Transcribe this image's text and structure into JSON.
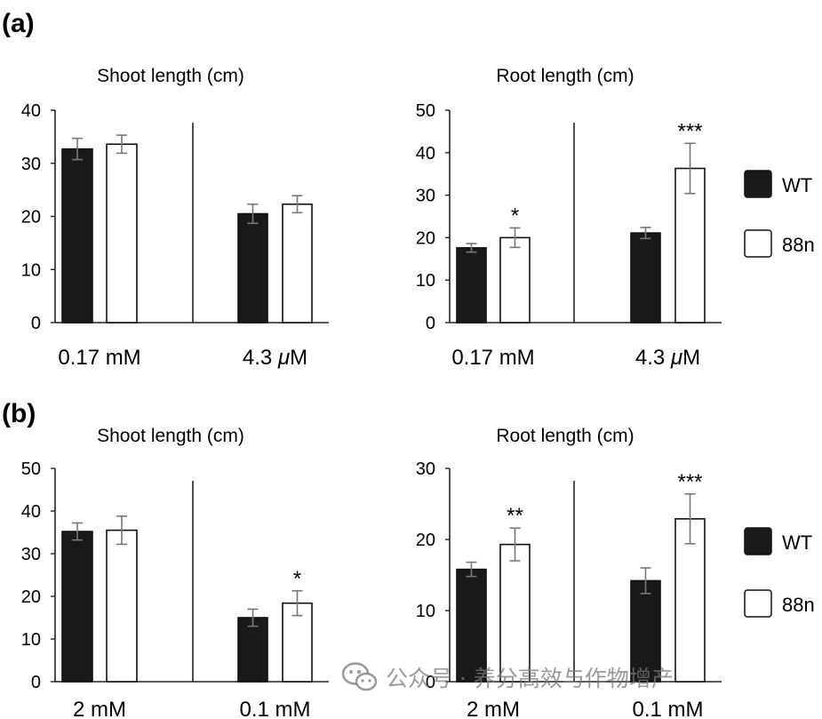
{
  "panel_labels": [
    "(a)",
    "(b)"
  ],
  "legend": [
    {
      "label": "WT",
      "color": "#1a1a1a"
    },
    {
      "label": "88n",
      "color": "#ffffff"
    }
  ],
  "watermark": {
    "icon": "wechat-icon",
    "text": "公众号 · 养分高效与作物增产"
  },
  "chart_data": [
    {
      "type": "bar",
      "panel": "(a)",
      "title": "Shoot length (cm)",
      "groups": [
        "0.17 mM",
        "4.3 μM"
      ],
      "ylim": [
        0,
        40
      ],
      "yticks": [
        0,
        10,
        20,
        30,
        40
      ],
      "series": [
        {
          "name": "WT",
          "values": [
            32.7,
            20.5
          ],
          "errors": [
            2.0,
            1.8
          ]
        },
        {
          "name": "88n",
          "values": [
            33.6,
            22.3
          ],
          "errors": [
            1.7,
            1.6
          ]
        }
      ],
      "significance": []
    },
    {
      "type": "bar",
      "panel": "(a)",
      "title": "Root length (cm)",
      "groups": [
        "0.17 mM",
        "4.3 μM"
      ],
      "ylim": [
        0,
        50
      ],
      "yticks": [
        0,
        10,
        20,
        30,
        40,
        50
      ],
      "series": [
        {
          "name": "WT",
          "values": [
            17.6,
            21.1
          ],
          "errors": [
            1.0,
            1.3
          ]
        },
        {
          "name": "88n",
          "values": [
            20.0,
            36.3
          ],
          "errors": [
            2.3,
            5.9
          ]
        }
      ],
      "significance": [
        {
          "group": 0,
          "series": 1,
          "label": "*"
        },
        {
          "group": 1,
          "series": 1,
          "label": "***"
        }
      ]
    },
    {
      "type": "bar",
      "panel": "(b)",
      "title": "Shoot length (cm)",
      "groups": [
        "2 mM",
        "0.1 mM"
      ],
      "ylim": [
        0,
        50
      ],
      "yticks": [
        0,
        10,
        20,
        30,
        40,
        50
      ],
      "series": [
        {
          "name": "WT",
          "values": [
            35.2,
            15.0
          ],
          "errors": [
            2.0,
            2.0
          ]
        },
        {
          "name": "88n",
          "values": [
            35.5,
            18.4
          ],
          "errors": [
            3.3,
            2.9
          ]
        }
      ],
      "significance": [
        {
          "group": 1,
          "series": 1,
          "label": "*"
        }
      ]
    },
    {
      "type": "bar",
      "panel": "(b)",
      "title": "Root length (cm)",
      "groups": [
        "2 mM",
        "0.1 mM"
      ],
      "ylim": [
        0,
        30
      ],
      "yticks": [
        0,
        10,
        20,
        30
      ],
      "series": [
        {
          "name": "WT",
          "values": [
            15.8,
            14.2
          ],
          "errors": [
            1.0,
            1.8
          ]
        },
        {
          "name": "88n",
          "values": [
            19.3,
            22.9
          ],
          "errors": [
            2.3,
            3.5
          ]
        }
      ],
      "significance": [
        {
          "group": 0,
          "series": 1,
          "label": "**"
        },
        {
          "group": 1,
          "series": 1,
          "label": "***"
        }
      ]
    }
  ]
}
